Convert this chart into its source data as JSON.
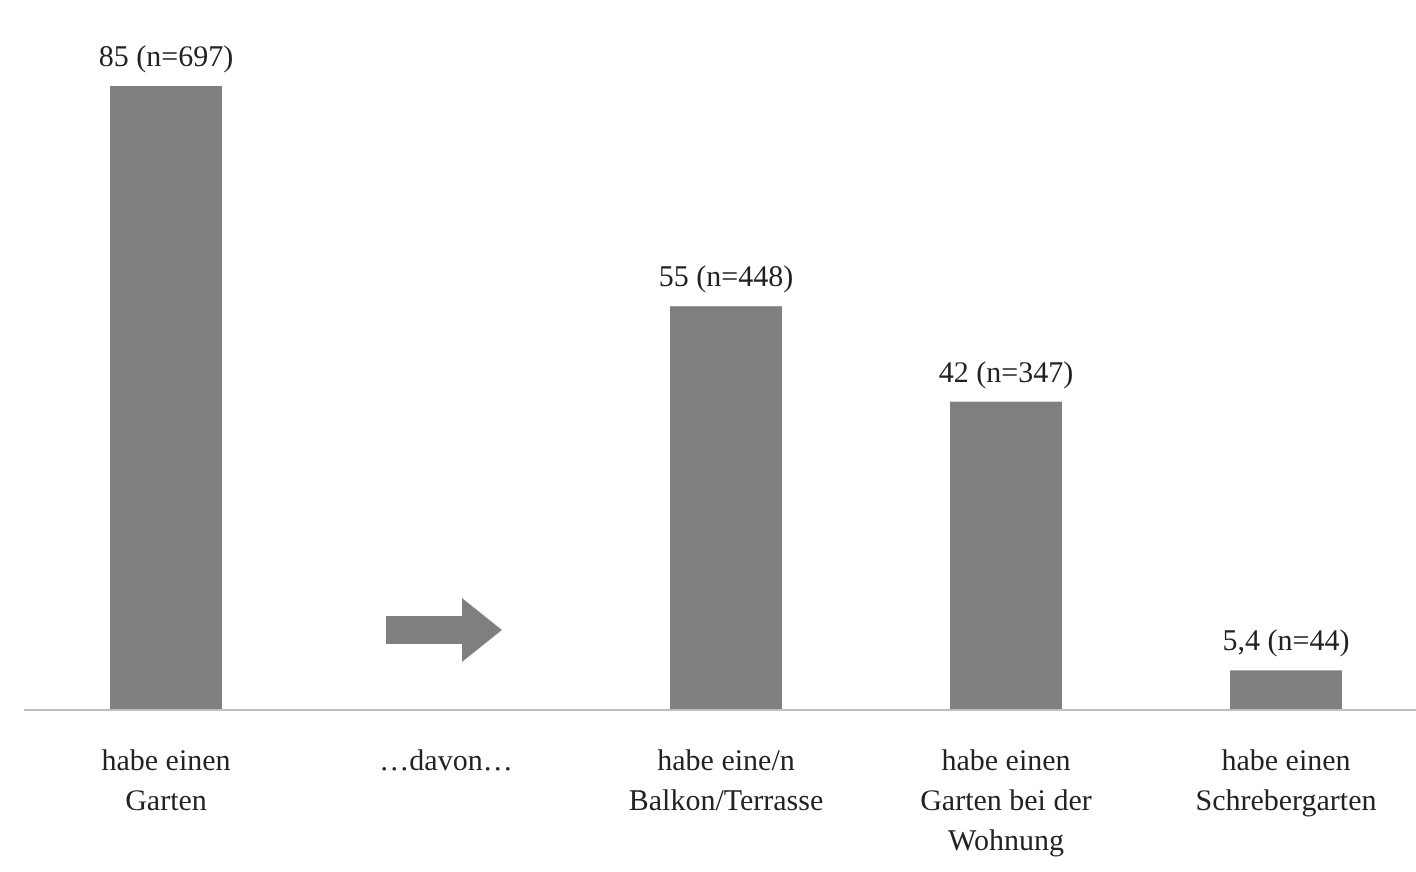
{
  "chart_data": {
    "type": "bar",
    "categories": [
      "habe einen Garten",
      "…davon…",
      "habe eine/n Balkon/Terrasse",
      "habe einen Garten bei der Wohnung",
      "habe einen Schrebergarten"
    ],
    "values": [
      85,
      null,
      55,
      42,
      5.4
    ],
    "value_labels": [
      "85 (n=697)",
      null,
      "55 (n=448)",
      "42 (n=347)",
      "5,4 (n=44)"
    ],
    "color": "#7f7f7f"
  }
}
